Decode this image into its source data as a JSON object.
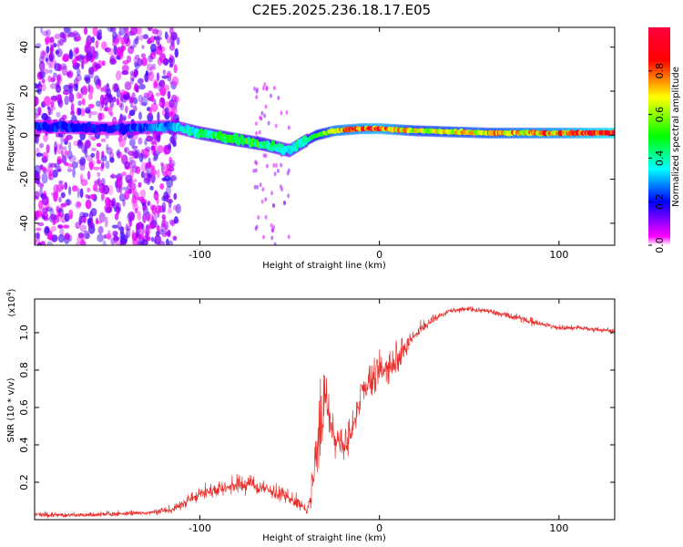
{
  "figure": {
    "title": "C2E5.2025.236.18.17.E05"
  },
  "chart_data": [
    {
      "type": "heatmap",
      "title": "C2E5.2025.236.18.17.E05",
      "xlabel": "Height of straight line (km)",
      "ylabel": "Frequency (Hz)",
      "xlim": [
        -192,
        131
      ],
      "ylim": [
        -50,
        49
      ],
      "xticks": [
        -100,
        0,
        100
      ],
      "xtick_labels": [
        "-100",
        "0",
        "100"
      ],
      "yticks": [
        -40,
        -20,
        0,
        20,
        40
      ],
      "ytick_labels": [
        "-40",
        "-20",
        "0",
        "20",
        "40"
      ],
      "colorbar": {
        "label": "Normalized spectral amplitude",
        "range": [
          0,
          1
        ],
        "ticks": [
          0.0,
          0.2,
          0.4,
          0.6,
          0.8
        ],
        "tick_labels": [
          "0.0",
          "0.2",
          "0.4",
          "0.6",
          "0.8"
        ],
        "colors": [
          "#ff00ff",
          "#0000ff",
          "#00ffff",
          "#00ff00",
          "#ffff00",
          "#ff0000",
          "#ff0040"
        ]
      },
      "ridge": {
        "x": [
          -190,
          -150,
          -115,
          -100,
          -80,
          -65,
          -50,
          -42,
          -35,
          -25,
          -10,
          0,
          20,
          60,
          100,
          131
        ],
        "y": [
          4,
          3,
          4,
          1,
          -2,
          -4,
          -7,
          -3,
          0,
          2,
          3,
          3,
          2,
          1,
          1,
          1
        ],
        "amplitude": [
          0.22,
          0.2,
          0.3,
          0.45,
          0.5,
          0.5,
          0.4,
          0.45,
          0.55,
          0.75,
          0.8,
          0.85,
          0.65,
          0.7,
          0.8,
          0.95
        ]
      }
    },
    {
      "type": "line",
      "xlabel": "Height of straight line (km)",
      "ylabel": "SNR (10 * v/v)",
      "scale_note": "(x10",
      "scale_exp": "4",
      "color": "#e8302c",
      "xlim": [
        -192,
        131
      ],
      "ylim": [
        0.0,
        1.18
      ],
      "xticks": [
        -100,
        0,
        100
      ],
      "xtick_labels": [
        "-100",
        "0",
        "100"
      ],
      "yticks": [
        0.2,
        0.4,
        0.6,
        0.8,
        1.0
      ],
      "ytick_labels": [
        "0.2",
        "0.4",
        "0.6",
        "0.8",
        "1.0"
      ],
      "series": [
        {
          "name": "SNR",
          "x": [
            -192,
            -160,
            -130,
            -115,
            -105,
            -90,
            -75,
            -65,
            -55,
            -45,
            -40,
            -36,
            -33,
            -30,
            -25,
            -20,
            -15,
            -10,
            -5,
            0,
            5,
            10,
            15,
            20,
            30,
            40,
            50,
            60,
            70,
            80,
            85,
            90,
            95,
            100,
            110,
            120,
            131
          ],
          "y": [
            0.03,
            0.03,
            0.04,
            0.06,
            0.12,
            0.18,
            0.2,
            0.18,
            0.15,
            0.1,
            0.05,
            0.3,
            0.5,
            0.7,
            0.45,
            0.4,
            0.5,
            0.72,
            0.75,
            0.8,
            0.85,
            0.9,
            0.95,
            1.0,
            1.08,
            1.12,
            1.13,
            1.12,
            1.1,
            1.08,
            1.06,
            1.05,
            1.04,
            1.03,
            1.03,
            1.02,
            1.01
          ],
          "noise": [
            0.02,
            0.02,
            0.02,
            0.03,
            0.05,
            0.07,
            0.08,
            0.07,
            0.06,
            0.05,
            0.03,
            0.22,
            0.3,
            0.22,
            0.12,
            0.12,
            0.12,
            0.12,
            0.12,
            0.15,
            0.15,
            0.15,
            0.1,
            0.06,
            0.03,
            0.02,
            0.02,
            0.02,
            0.03,
            0.03,
            0.03,
            0.02,
            0.02,
            0.02,
            0.02,
            0.02,
            0.02
          ]
        }
      ]
    }
  ]
}
